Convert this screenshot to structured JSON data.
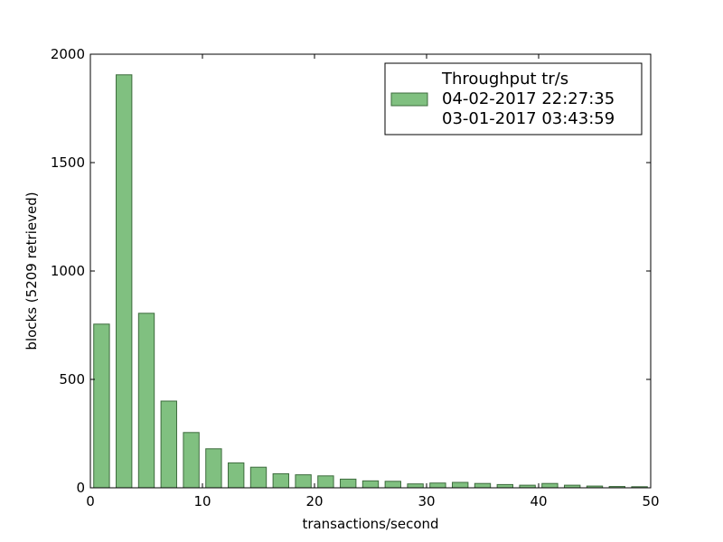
{
  "chart_data": {
    "type": "bar",
    "xlabel": "transactions/second",
    "ylabel": "blocks (5209 retrieved)",
    "xlim": [
      0,
      50
    ],
    "ylim": [
      0,
      2000
    ],
    "xticks": [
      0,
      10,
      20,
      30,
      40,
      50
    ],
    "yticks": [
      0,
      500,
      1000,
      1500,
      2000
    ],
    "grid": false,
    "legend_position": "top-right",
    "legend_lines": [
      "Throughput tr/s",
      "04-02-2017 22:27:35",
      "03-01-2017 03:43:59"
    ],
    "bar_color": "#80c080",
    "bar_edge_color": "#3d6b3d",
    "bin_width": 2,
    "x": [
      1,
      3,
      5,
      7,
      9,
      11,
      13,
      15,
      17,
      19,
      21,
      23,
      25,
      27,
      29,
      31,
      33,
      35,
      37,
      39,
      41,
      43,
      45,
      47,
      49
    ],
    "values": [
      755,
      1905,
      805,
      400,
      255,
      180,
      115,
      95,
      65,
      60,
      55,
      40,
      32,
      30,
      18,
      22,
      25,
      20,
      15,
      12,
      20,
      12,
      8,
      6,
      5
    ]
  }
}
